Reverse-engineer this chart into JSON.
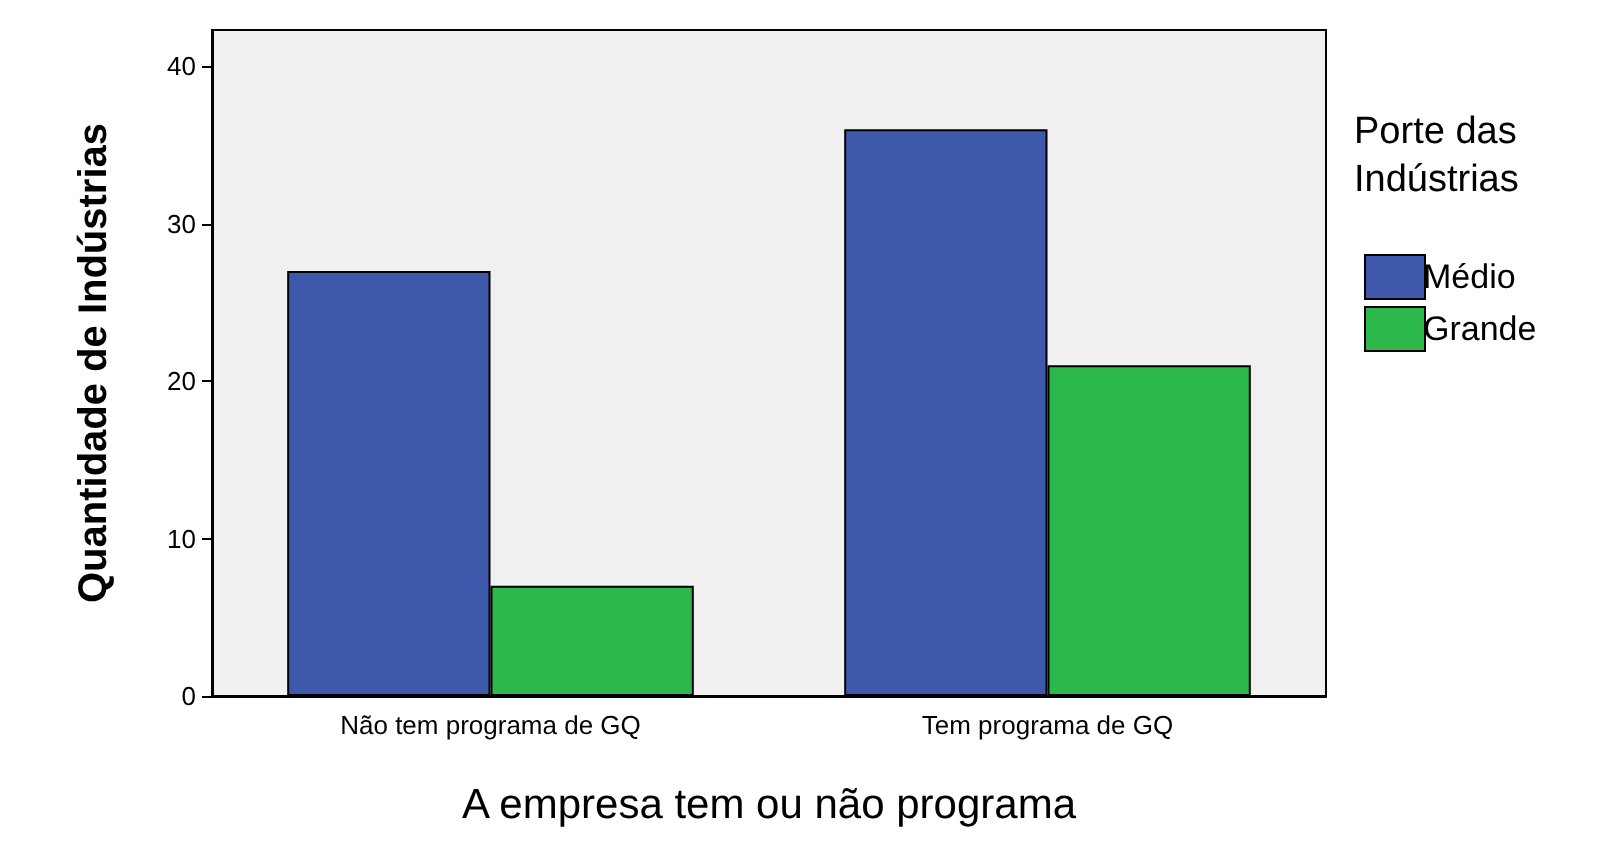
{
  "chart_data": {
    "type": "bar",
    "xlabel": "A empresa tem ou não programa",
    "ylabel": "Quantidade de Indústrias",
    "legend_title": "Porte das Indústrias",
    "categories": [
      "Não tem programa de GQ",
      "Tem programa de GQ"
    ],
    "series": [
      {
        "name": "Médio",
        "color": "#3e58ac",
        "values": [
          27,
          36
        ]
      },
      {
        "name": "Grande",
        "color": "#2db84c",
        "values": [
          7,
          21
        ]
      }
    ],
    "ylim": [
      0,
      42.3
    ],
    "yticks": [
      0,
      10,
      20,
      30,
      40
    ],
    "grid": false,
    "legend": "right"
  }
}
